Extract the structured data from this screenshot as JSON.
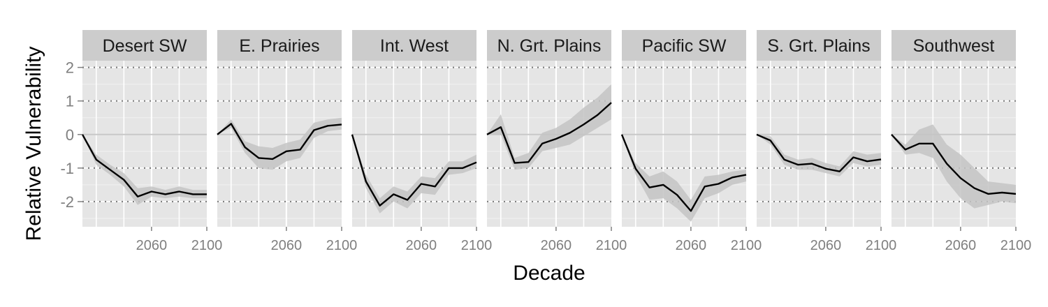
{
  "chart_data": {
    "type": "line",
    "xlabel": "Decade",
    "ylabel": "Relative Vulnerability",
    "xlim": [
      2010,
      2100
    ],
    "ylim": [
      -2.75,
      2.2
    ],
    "y_ticks": [
      -2,
      -1,
      0,
      1,
      2
    ],
    "x_ticks": [
      2060,
      2100
    ],
    "x_tick_labels": [
      "2060",
      "2100"
    ],
    "dotted_reference_lines": [
      -2,
      -1,
      1,
      2
    ],
    "zero_line": 0,
    "band": "shaded uncertainty range around each line",
    "x": [
      2010,
      2020,
      2030,
      2040,
      2050,
      2060,
      2070,
      2080,
      2090,
      2100
    ],
    "facets": [
      {
        "name": "Desert SW",
        "values": [
          0,
          -0.75,
          -1.05,
          -1.35,
          -1.85,
          -1.7,
          -1.78,
          -1.7,
          -1.78,
          -1.78
        ],
        "lower": [
          0,
          -0.9,
          -1.2,
          -1.55,
          -2.1,
          -1.85,
          -1.9,
          -1.85,
          -1.9,
          -1.9
        ],
        "upper": [
          0,
          -0.6,
          -0.9,
          -1.15,
          -1.6,
          -1.55,
          -1.65,
          -1.55,
          -1.65,
          -1.65
        ]
      },
      {
        "name": "E. Prairies",
        "values": [
          0,
          0.32,
          -0.38,
          -0.7,
          -0.73,
          -0.5,
          -0.45,
          0.13,
          0.26,
          0.3
        ],
        "lower": [
          0,
          0.2,
          -0.55,
          -1.0,
          -1.05,
          -0.8,
          -0.7,
          -0.1,
          0.1,
          0.15
        ],
        "upper": [
          0,
          0.45,
          -0.2,
          -0.35,
          -0.4,
          -0.25,
          -0.15,
          0.35,
          0.45,
          0.5
        ]
      },
      {
        "name": "Int. West",
        "values": [
          0,
          -1.4,
          -2.12,
          -1.78,
          -1.95,
          -1.47,
          -1.55,
          -1.0,
          -1.0,
          -0.83
        ],
        "lower": [
          0,
          -1.6,
          -2.35,
          -2.0,
          -2.2,
          -1.75,
          -1.8,
          -1.2,
          -1.15,
          -1.0
        ],
        "upper": [
          0,
          -1.2,
          -1.9,
          -1.55,
          -1.7,
          -1.25,
          -1.3,
          -0.8,
          -0.8,
          -0.6
        ]
      },
      {
        "name": "N. Grt. Plains",
        "values": [
          0,
          0.22,
          -0.85,
          -0.82,
          -0.27,
          -0.13,
          0.05,
          0.3,
          0.58,
          0.95
        ],
        "lower": [
          0,
          0.0,
          -1.05,
          -1.0,
          -0.5,
          -0.4,
          -0.3,
          -0.05,
          0.2,
          0.45
        ],
        "upper": [
          0,
          0.6,
          -0.7,
          -0.55,
          0.05,
          0.2,
          0.45,
          0.8,
          1.1,
          1.5
        ]
      },
      {
        "name": "Pacific SW",
        "values": [
          0,
          -1.02,
          -1.58,
          -1.5,
          -1.8,
          -2.28,
          -1.55,
          -1.47,
          -1.28,
          -1.2
        ],
        "lower": [
          0,
          -1.2,
          -1.95,
          -1.9,
          -2.2,
          -2.6,
          -1.9,
          -1.75,
          -1.5,
          -1.4
        ],
        "upper": [
          0,
          -0.85,
          -1.25,
          -1.1,
          -1.4,
          -1.95,
          -1.25,
          -1.2,
          -1.1,
          -1.05
        ]
      },
      {
        "name": "S. Grt. Plains",
        "values": [
          0,
          -0.18,
          -0.75,
          -0.9,
          -0.87,
          -1.02,
          -1.1,
          -0.68,
          -0.8,
          -0.74
        ],
        "lower": [
          0,
          -0.3,
          -0.9,
          -1.05,
          -1.05,
          -1.15,
          -1.25,
          -0.85,
          -0.95,
          -0.9
        ],
        "upper": [
          0,
          -0.05,
          -0.6,
          -0.75,
          -0.7,
          -0.85,
          -0.95,
          -0.5,
          -0.6,
          -0.55
        ]
      },
      {
        "name": "Southwest",
        "values": [
          0,
          -0.45,
          -0.27,
          -0.27,
          -0.87,
          -1.3,
          -1.6,
          -1.77,
          -1.73,
          -1.77
        ],
        "lower": [
          0,
          -0.6,
          -0.55,
          -0.7,
          -1.4,
          -1.9,
          -2.2,
          -2.1,
          -2.0,
          -2.05
        ],
        "upper": [
          0,
          -0.3,
          0.15,
          0.3,
          -0.3,
          -0.6,
          -1.0,
          -1.4,
          -1.45,
          -1.5
        ]
      }
    ]
  },
  "colors": {
    "panel_bg": "#e5e5e5",
    "strip_bg": "#cccccc",
    "grid_minor": "#f2f2f2",
    "grid_major": "#ffffff",
    "band": "#c4c4c4",
    "line": "#000000",
    "zero_line": "#c8c8c8",
    "dotted_line": "#7f7f7f",
    "tick_text": "#7f7f7f"
  }
}
